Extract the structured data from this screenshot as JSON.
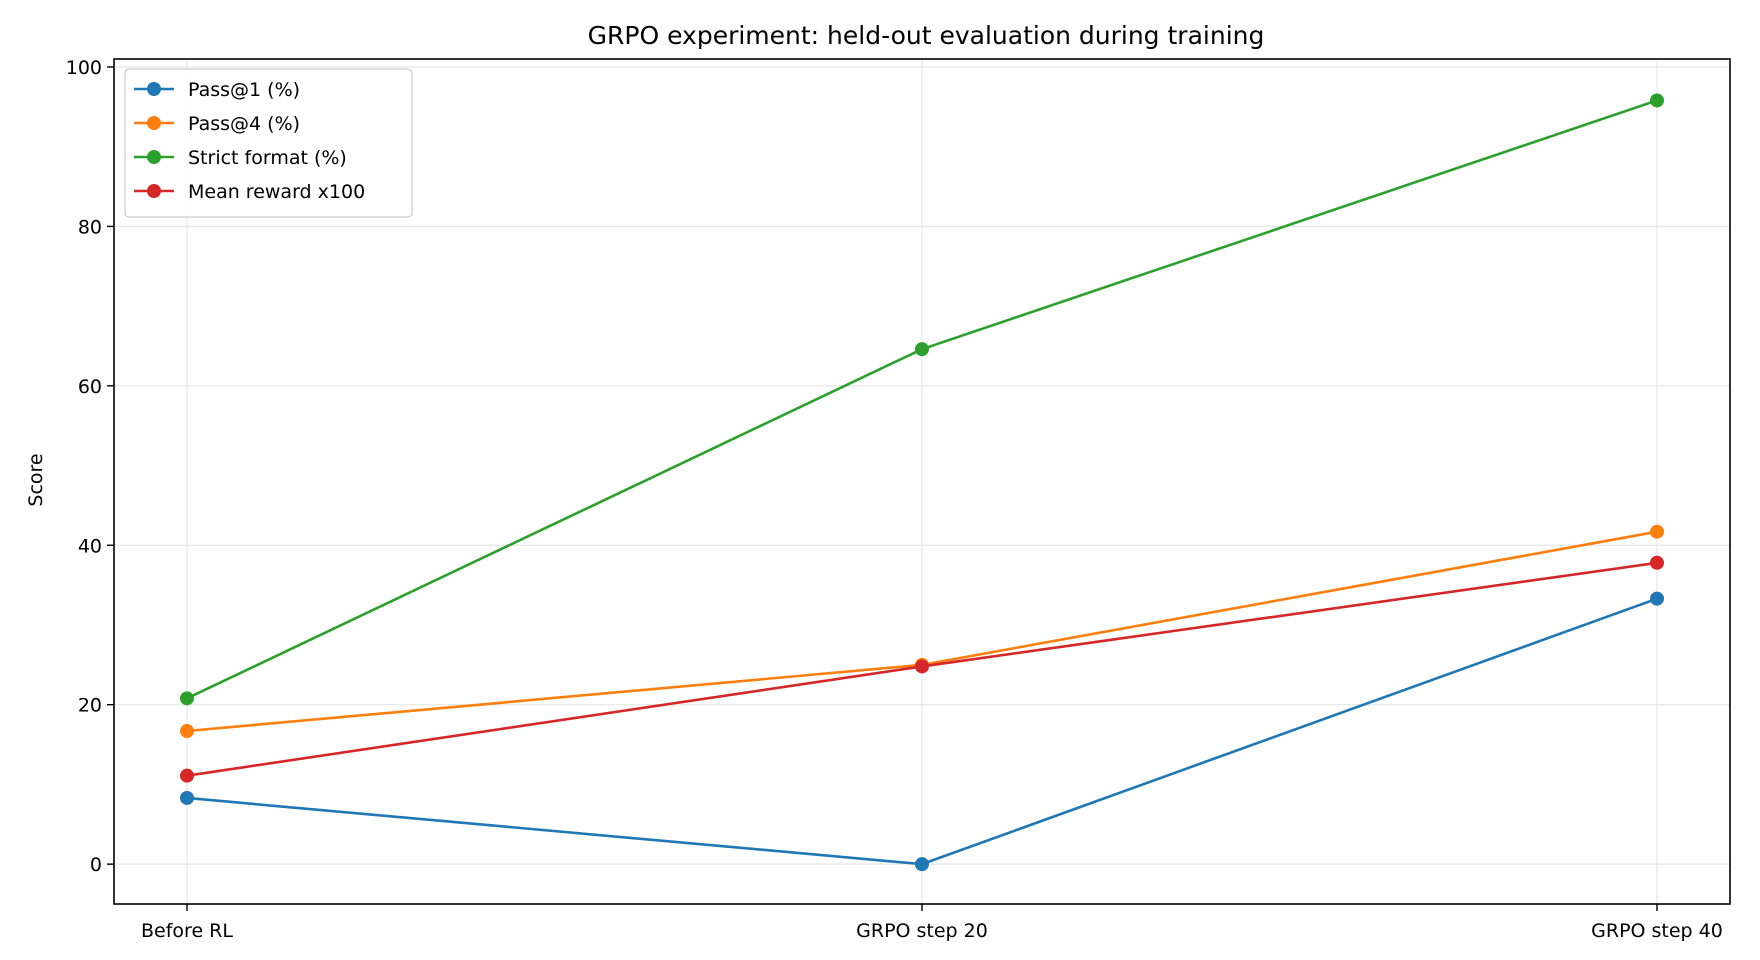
{
  "chart_data": {
    "type": "line",
    "title": "GRPO experiment: held-out evaluation during training",
    "xlabel": "",
    "ylabel": "Score",
    "categories": [
      "Before RL",
      "GRPO step 20",
      "GRPO step 40"
    ],
    "ylim": [
      -5,
      101
    ],
    "yticks": [
      0,
      20,
      40,
      60,
      80,
      100
    ],
    "grid": true,
    "legend_position": "top-left",
    "series": [
      {
        "name": "Pass@1 (%)",
        "color": "#1f77b4",
        "values": [
          8.3,
          0.0,
          33.3
        ]
      },
      {
        "name": "Pass@4 (%)",
        "color": "#ff7f0e",
        "values": [
          16.7,
          25.0,
          41.7
        ]
      },
      {
        "name": "Strict format (%)",
        "color": "#2ca02c",
        "values": [
          20.8,
          64.6,
          95.8
        ]
      },
      {
        "name": "Mean reward x100",
        "color": "#d62728",
        "values": [
          11.1,
          24.8,
          37.8
        ]
      }
    ]
  }
}
